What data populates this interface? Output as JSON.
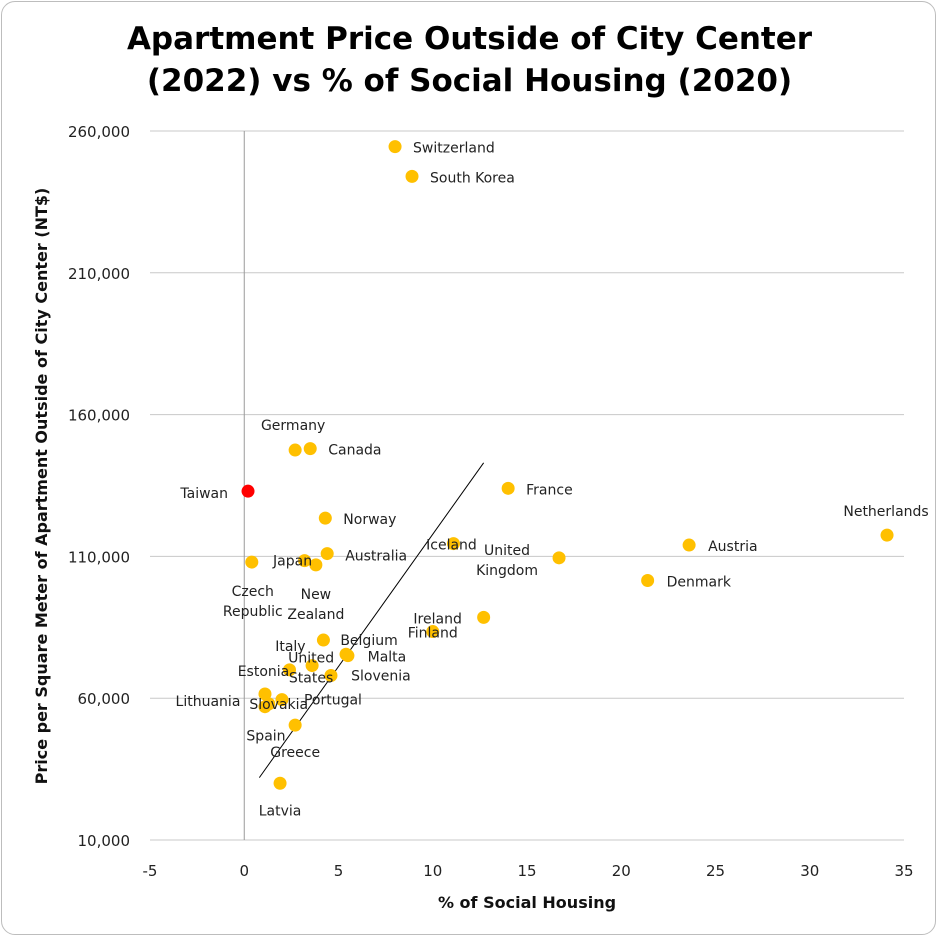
{
  "chart_data": {
    "type": "scatter",
    "title_line1": "Apartment Price Outside of City Center",
    "title_line2": "(2022) vs % of Social Housing (2020)",
    "xlabel": "% of Social Housing",
    "ylabel": "Price per Square Meter of Apartment Outside of City Center (NT$)",
    "xlim": [
      -5,
      35
    ],
    "ylim": [
      10000,
      260000
    ],
    "x_ticks": [
      -5,
      0,
      5,
      10,
      15,
      20,
      25,
      30,
      35
    ],
    "y_ticks": [
      10000,
      60000,
      110000,
      160000,
      210000,
      260000
    ],
    "y_tick_labels": [
      "10,000",
      "60,000",
      "110,000",
      "160,000",
      "210,000",
      "260,000"
    ],
    "point_color": "#FFC000",
    "highlight_color": "#FF0000",
    "trendline": {
      "x": [
        0.8,
        12.7
      ],
      "y": [
        32000,
        143000
      ]
    },
    "points": [
      {
        "name": "Switzerland",
        "x": 8.0,
        "y": 254500,
        "label_lines": [
          "Switzerland"
        ]
      },
      {
        "name": "South Korea",
        "x": 8.9,
        "y": 244000,
        "label_lines": [
          "South Korea"
        ]
      },
      {
        "name": "Germany",
        "x": 2.7,
        "y": 147500,
        "label_lines": [
          "Germany"
        ]
      },
      {
        "name": "Canada",
        "x": 3.5,
        "y": 148000,
        "label_lines": [
          "Canada"
        ]
      },
      {
        "name": "Taiwan",
        "x": 0.2,
        "y": 133000,
        "label_lines": [
          "Taiwan"
        ],
        "highlight": true
      },
      {
        "name": "France",
        "x": 14.0,
        "y": 134000,
        "label_lines": [
          "France"
        ]
      },
      {
        "name": "Norway",
        "x": 4.3,
        "y": 123500,
        "label_lines": [
          "Norway"
        ]
      },
      {
        "name": "Netherlands",
        "x": 34.1,
        "y": 117500,
        "label_lines": [
          "Netherlands"
        ]
      },
      {
        "name": "Iceland",
        "x": 11.1,
        "y": 114500,
        "label_lines": [
          "Iceland"
        ]
      },
      {
        "name": "Austria",
        "x": 23.6,
        "y": 114000,
        "label_lines": [
          "Austria"
        ]
      },
      {
        "name": "Australia",
        "x": 4.4,
        "y": 111000,
        "label_lines": [
          "Australia"
        ]
      },
      {
        "name": "United Kingdom",
        "x": 16.7,
        "y": 109500,
        "label_lines": [
          "United",
          "Kingdom"
        ]
      },
      {
        "name": "Japan",
        "x": 3.2,
        "y": 108500,
        "label_lines": [
          "Japan"
        ]
      },
      {
        "name": "New Zealand",
        "x": 3.8,
        "y": 107000,
        "label_lines": [
          "New",
          "Zealand"
        ]
      },
      {
        "name": "Czech Republic",
        "x": 0.4,
        "y": 108000,
        "label_lines": [
          "Czech",
          "Republic"
        ]
      },
      {
        "name": "Denmark",
        "x": 21.4,
        "y": 101500,
        "label_lines": [
          "Denmark"
        ]
      },
      {
        "name": "Ireland",
        "x": 12.7,
        "y": 88500,
        "label_lines": [
          "Ireland"
        ]
      },
      {
        "name": "Finland",
        "x": 10.0,
        "y": 83500,
        "label_lines": [
          "Finland"
        ]
      },
      {
        "name": "Italy",
        "x": 4.2,
        "y": 80500,
        "label_lines": [
          "Italy"
        ]
      },
      {
        "name": "Belgium",
        "x": 5.4,
        "y": 75500,
        "label_lines": [
          "Belgium"
        ]
      },
      {
        "name": "Malta",
        "x": 5.5,
        "y": 75000,
        "label_lines": [
          "Malta"
        ]
      },
      {
        "name": "United States",
        "x": 3.6,
        "y": 71500,
        "label_lines": [
          "United",
          "States"
        ]
      },
      {
        "name": "Estonia",
        "x": 2.4,
        "y": 70000,
        "label_lines": [
          "Estonia"
        ]
      },
      {
        "name": "Slovenia",
        "x": 4.6,
        "y": 68000,
        "label_lines": [
          "Slovenia"
        ]
      },
      {
        "name": "Lithuania",
        "x": 1.1,
        "y": 61500,
        "label_lines": [
          "Lithuania"
        ]
      },
      {
        "name": "Slovakia",
        "x": 1.3,
        "y": 58000,
        "label_lines": [
          "Slovakia"
        ]
      },
      {
        "name": "Portugal",
        "x": 2.0,
        "y": 59500,
        "label_lines": [
          "Portugal"
        ]
      },
      {
        "name": "Spain",
        "x": 1.1,
        "y": 57000,
        "label_lines": [
          "Spain"
        ]
      },
      {
        "name": "Greece",
        "x": 2.7,
        "y": 50500,
        "label_lines": [
          "Greece"
        ]
      },
      {
        "name": "Latvia",
        "x": 1.9,
        "y": 30000,
        "label_lines": [
          "Latvia"
        ]
      }
    ]
  }
}
